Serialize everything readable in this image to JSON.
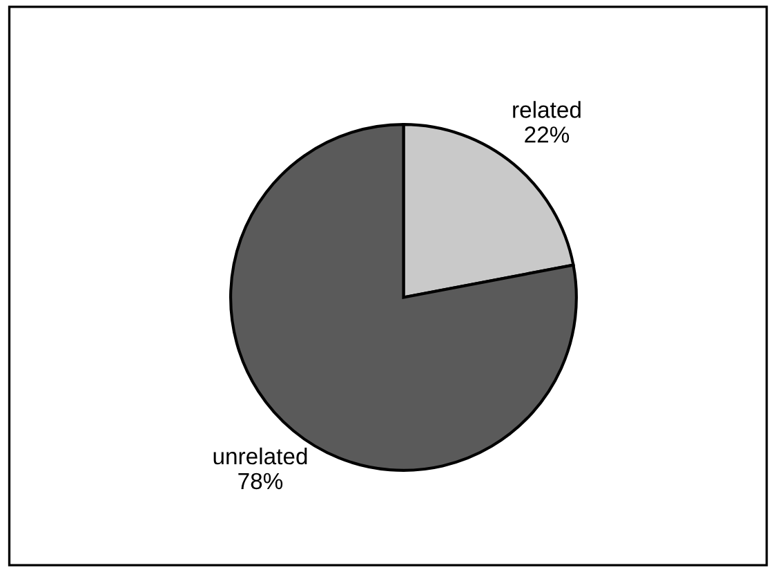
{
  "chart_data": {
    "type": "pie",
    "categories": [
      "related",
      "unrelated"
    ],
    "values": [
      22,
      78
    ],
    "value_labels": [
      "22%",
      "78%"
    ],
    "colors": [
      "#c9c9c9",
      "#5a5a5a"
    ]
  }
}
